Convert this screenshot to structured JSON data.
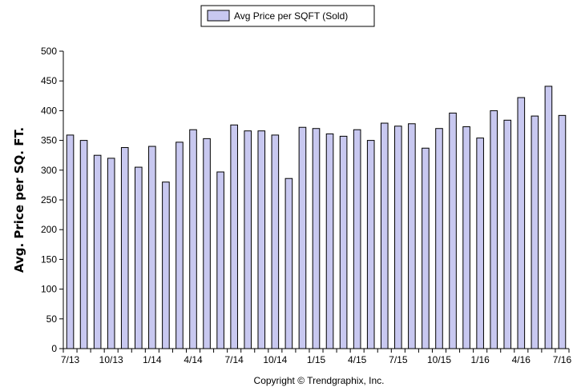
{
  "chart_data": {
    "type": "bar",
    "ylabel": "Avg. Price per SQ. FT.",
    "ylim": [
      0,
      500
    ],
    "yticks": [
      0,
      50,
      100,
      150,
      200,
      250,
      300,
      350,
      400,
      450,
      500
    ],
    "legend_position": "top-center",
    "grid": false,
    "series": [
      {
        "name": "Avg Price per SQFT (Sold)",
        "color": "#c8c8f0",
        "values": [
          359,
          350,
          325,
          320,
          338,
          305,
          340,
          280,
          347,
          368,
          353,
          297,
          376,
          366,
          366,
          359,
          286,
          372,
          370,
          361,
          357,
          368,
          350,
          379,
          374,
          378,
          337,
          370,
          396,
          373,
          354,
          400,
          384,
          422,
          391,
          441,
          392
        ]
      }
    ],
    "categories": [
      "7/13",
      "8/13",
      "9/13",
      "10/13",
      "11/13",
      "12/13",
      "1/14",
      "2/14",
      "3/14",
      "4/14",
      "5/14",
      "6/14",
      "7/14",
      "8/14",
      "9/14",
      "10/14",
      "11/14",
      "12/14",
      "1/15",
      "2/15",
      "3/15",
      "4/15",
      "5/15",
      "6/15",
      "7/15",
      "8/15",
      "9/15",
      "10/15",
      "11/15",
      "12/15",
      "1/16",
      "2/16",
      "3/16",
      "4/16",
      "5/16",
      "6/16",
      "7/16"
    ],
    "x_tick_labels": [
      {
        "index": 0,
        "label": "7/13"
      },
      {
        "index": 3,
        "label": "10/13"
      },
      {
        "index": 6,
        "label": "1/14"
      },
      {
        "index": 9,
        "label": "4/14"
      },
      {
        "index": 12,
        "label": "7/14"
      },
      {
        "index": 15,
        "label": "10/14"
      },
      {
        "index": 18,
        "label": "1/15"
      },
      {
        "index": 21,
        "label": "4/15"
      },
      {
        "index": 24,
        "label": "7/15"
      },
      {
        "index": 27,
        "label": "10/15"
      },
      {
        "index": 30,
        "label": "1/16"
      },
      {
        "index": 33,
        "label": "4/16"
      },
      {
        "index": 36,
        "label": "7/16"
      }
    ],
    "annotation": "Copyright © Trendgraphix, Inc."
  }
}
